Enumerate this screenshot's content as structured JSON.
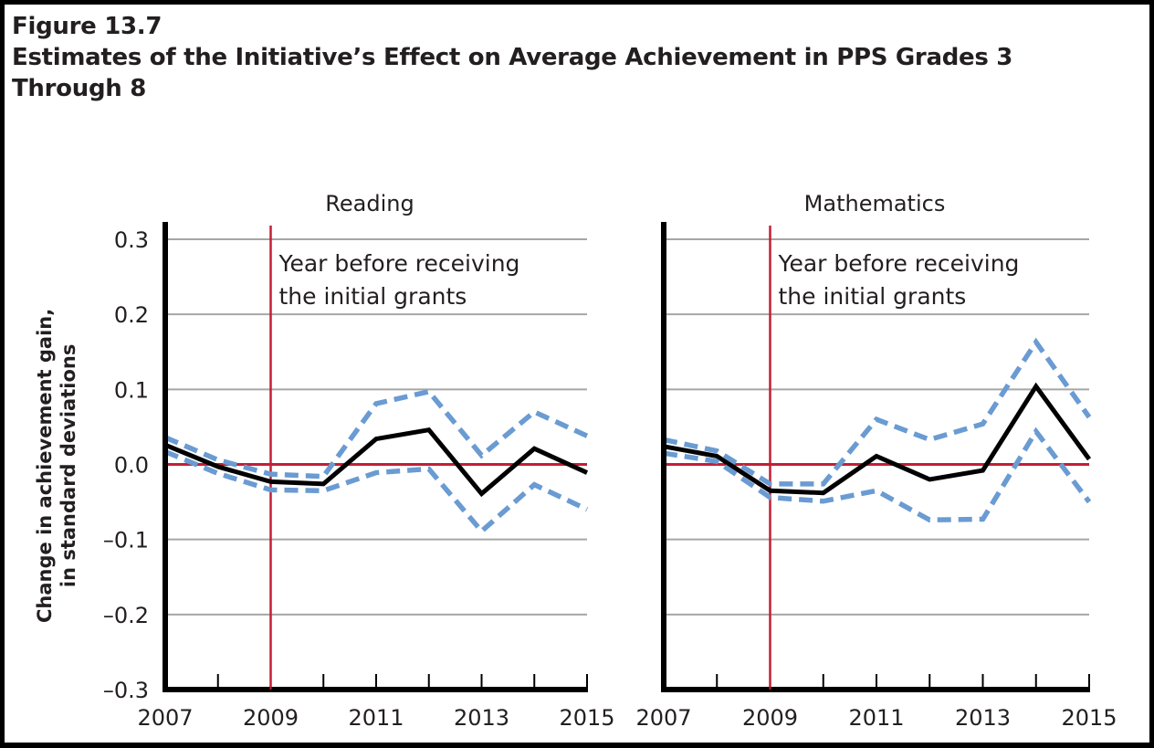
{
  "figure": {
    "number": "Figure 13.7",
    "title_line1": "Estimates of the Initiative’s Effect on Average Achievement in PPS Grades 3",
    "title_line2": "Through 8"
  },
  "colors": {
    "estimate": "#000000",
    "confidence_bounds": "#6a9bd2",
    "reference_lines": "#c41e35",
    "gridlines": "#a6a6a6",
    "text": "#231f20"
  },
  "chart_data": [
    {
      "type": "line",
      "title": "Reading",
      "xlabel": "",
      "ylabel": "Change in achievement gain, in standard deviations",
      "ylabel_line1": "Change in achievement gain,",
      "ylabel_line2": "in standard deviations",
      "x": [
        2007,
        2008,
        2009,
        2010,
        2011,
        2012,
        2013,
        2014,
        2015
      ],
      "xlim": [
        2007,
        2015
      ],
      "ylim": [
        -0.3,
        0.3
      ],
      "x_tick_labels": [
        "2007",
        "2009",
        "2011",
        "2013",
        "2015"
      ],
      "y_ticks": [
        0.3,
        0.2,
        0.1,
        0.0,
        -0.1,
        -0.2,
        -0.3
      ],
      "y_tick_labels": [
        "0.3",
        "0.2",
        "0.1",
        "0.0",
        "–0.1",
        "–0.2",
        "–0.3"
      ],
      "grid": true,
      "reference_vertical_x": 2009,
      "reference_horizontal_y": 0.0,
      "annotation_line1": "Year before receiving",
      "annotation_line2": "the initial grants",
      "series": [
        {
          "name": "Estimate",
          "style": "solid",
          "values": [
            0.026,
            -0.003,
            -0.023,
            -0.026,
            0.034,
            0.046,
            -0.039,
            0.021,
            -0.011
          ]
        },
        {
          "name": "Upper bound",
          "style": "dashed",
          "values": [
            0.036,
            0.006,
            -0.013,
            -0.016,
            0.081,
            0.097,
            0.012,
            0.07,
            0.038
          ]
        },
        {
          "name": "Lower bound",
          "style": "dashed",
          "values": [
            0.017,
            -0.012,
            -0.034,
            -0.035,
            -0.011,
            -0.006,
            -0.089,
            -0.027,
            -0.06
          ]
        }
      ]
    },
    {
      "type": "line",
      "title": "Mathematics",
      "xlabel": "",
      "ylabel": "",
      "x": [
        2007,
        2008,
        2009,
        2010,
        2011,
        2012,
        2013,
        2014,
        2015
      ],
      "xlim": [
        2007,
        2015
      ],
      "ylim": [
        -0.3,
        0.3
      ],
      "x_tick_labels": [
        "2007",
        "2009",
        "2011",
        "2013",
        "2015"
      ],
      "y_ticks": [
        0.3,
        0.2,
        0.1,
        0.0,
        -0.1,
        -0.2,
        -0.3
      ],
      "y_tick_labels": [],
      "grid": true,
      "reference_vertical_x": 2009,
      "reference_horizontal_y": 0.0,
      "annotation_line1": "Year before receiving",
      "annotation_line2": "the initial grants",
      "series": [
        {
          "name": "Estimate",
          "style": "solid",
          "values": [
            0.024,
            0.011,
            -0.035,
            -0.038,
            0.011,
            -0.02,
            -0.008,
            0.104,
            0.007
          ]
        },
        {
          "name": "Upper bound",
          "style": "dashed",
          "values": [
            0.033,
            0.018,
            -0.026,
            -0.026,
            0.06,
            0.033,
            0.054,
            0.163,
            0.063
          ]
        },
        {
          "name": "Lower bound",
          "style": "dashed",
          "values": [
            0.015,
            0.004,
            -0.044,
            -0.049,
            -0.035,
            -0.074,
            -0.073,
            0.044,
            -0.05
          ]
        }
      ]
    }
  ]
}
